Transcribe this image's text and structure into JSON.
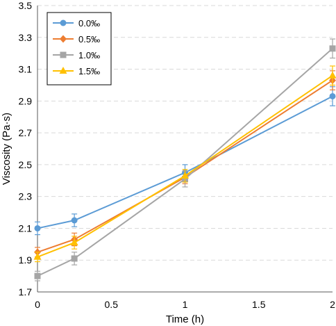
{
  "chart_data": {
    "type": "line",
    "xlabel": "Time (h)",
    "ylabel": "Viscosity (Pa·s)",
    "xlim": [
      0,
      2
    ],
    "ylim": [
      1.7,
      3.5
    ],
    "x_ticks": [
      0,
      0.5,
      1,
      1.5,
      2
    ],
    "x_tick_labels": [
      "0",
      "0.5",
      "1",
      "1.5",
      "2"
    ],
    "y_ticks": [
      1.7,
      1.9,
      2.1,
      2.3,
      2.5,
      2.7,
      2.9,
      3.1,
      3.3,
      3.5
    ],
    "y_tick_labels": [
      "1.7",
      "1.9",
      "2.1",
      "2.3",
      "2.5",
      "2.7",
      "2.9",
      "3.1",
      "3.3",
      "3.5"
    ],
    "grid": "horizontal dashed",
    "legend_position": "top-left",
    "x": [
      0,
      0.25,
      1,
      2
    ],
    "series": [
      {
        "name": "0.0‰",
        "color": "#5B9BD5",
        "marker": "circle",
        "values": [
          2.1,
          2.15,
          2.45,
          2.93
        ],
        "errors": [
          0.04,
          0.04,
          0.05,
          0.06
        ]
      },
      {
        "name": "0.5‰",
        "color": "#ED7D31",
        "marker": "diamond",
        "values": [
          1.95,
          2.03,
          2.42,
          3.03
        ],
        "errors": [
          0.03,
          0.04,
          0.04,
          0.06
        ]
      },
      {
        "name": "1.0‰",
        "color": "#A5A5A5",
        "marker": "square",
        "values": [
          1.8,
          1.91,
          2.41,
          3.23
        ],
        "errors": [
          0.03,
          0.04,
          0.05,
          0.06
        ]
      },
      {
        "name": "1.5‰",
        "color": "#FFC000",
        "marker": "triangle",
        "values": [
          1.92,
          2.01,
          2.43,
          3.06
        ],
        "errors": [
          0.03,
          0.04,
          0.04,
          0.06
        ]
      }
    ]
  }
}
